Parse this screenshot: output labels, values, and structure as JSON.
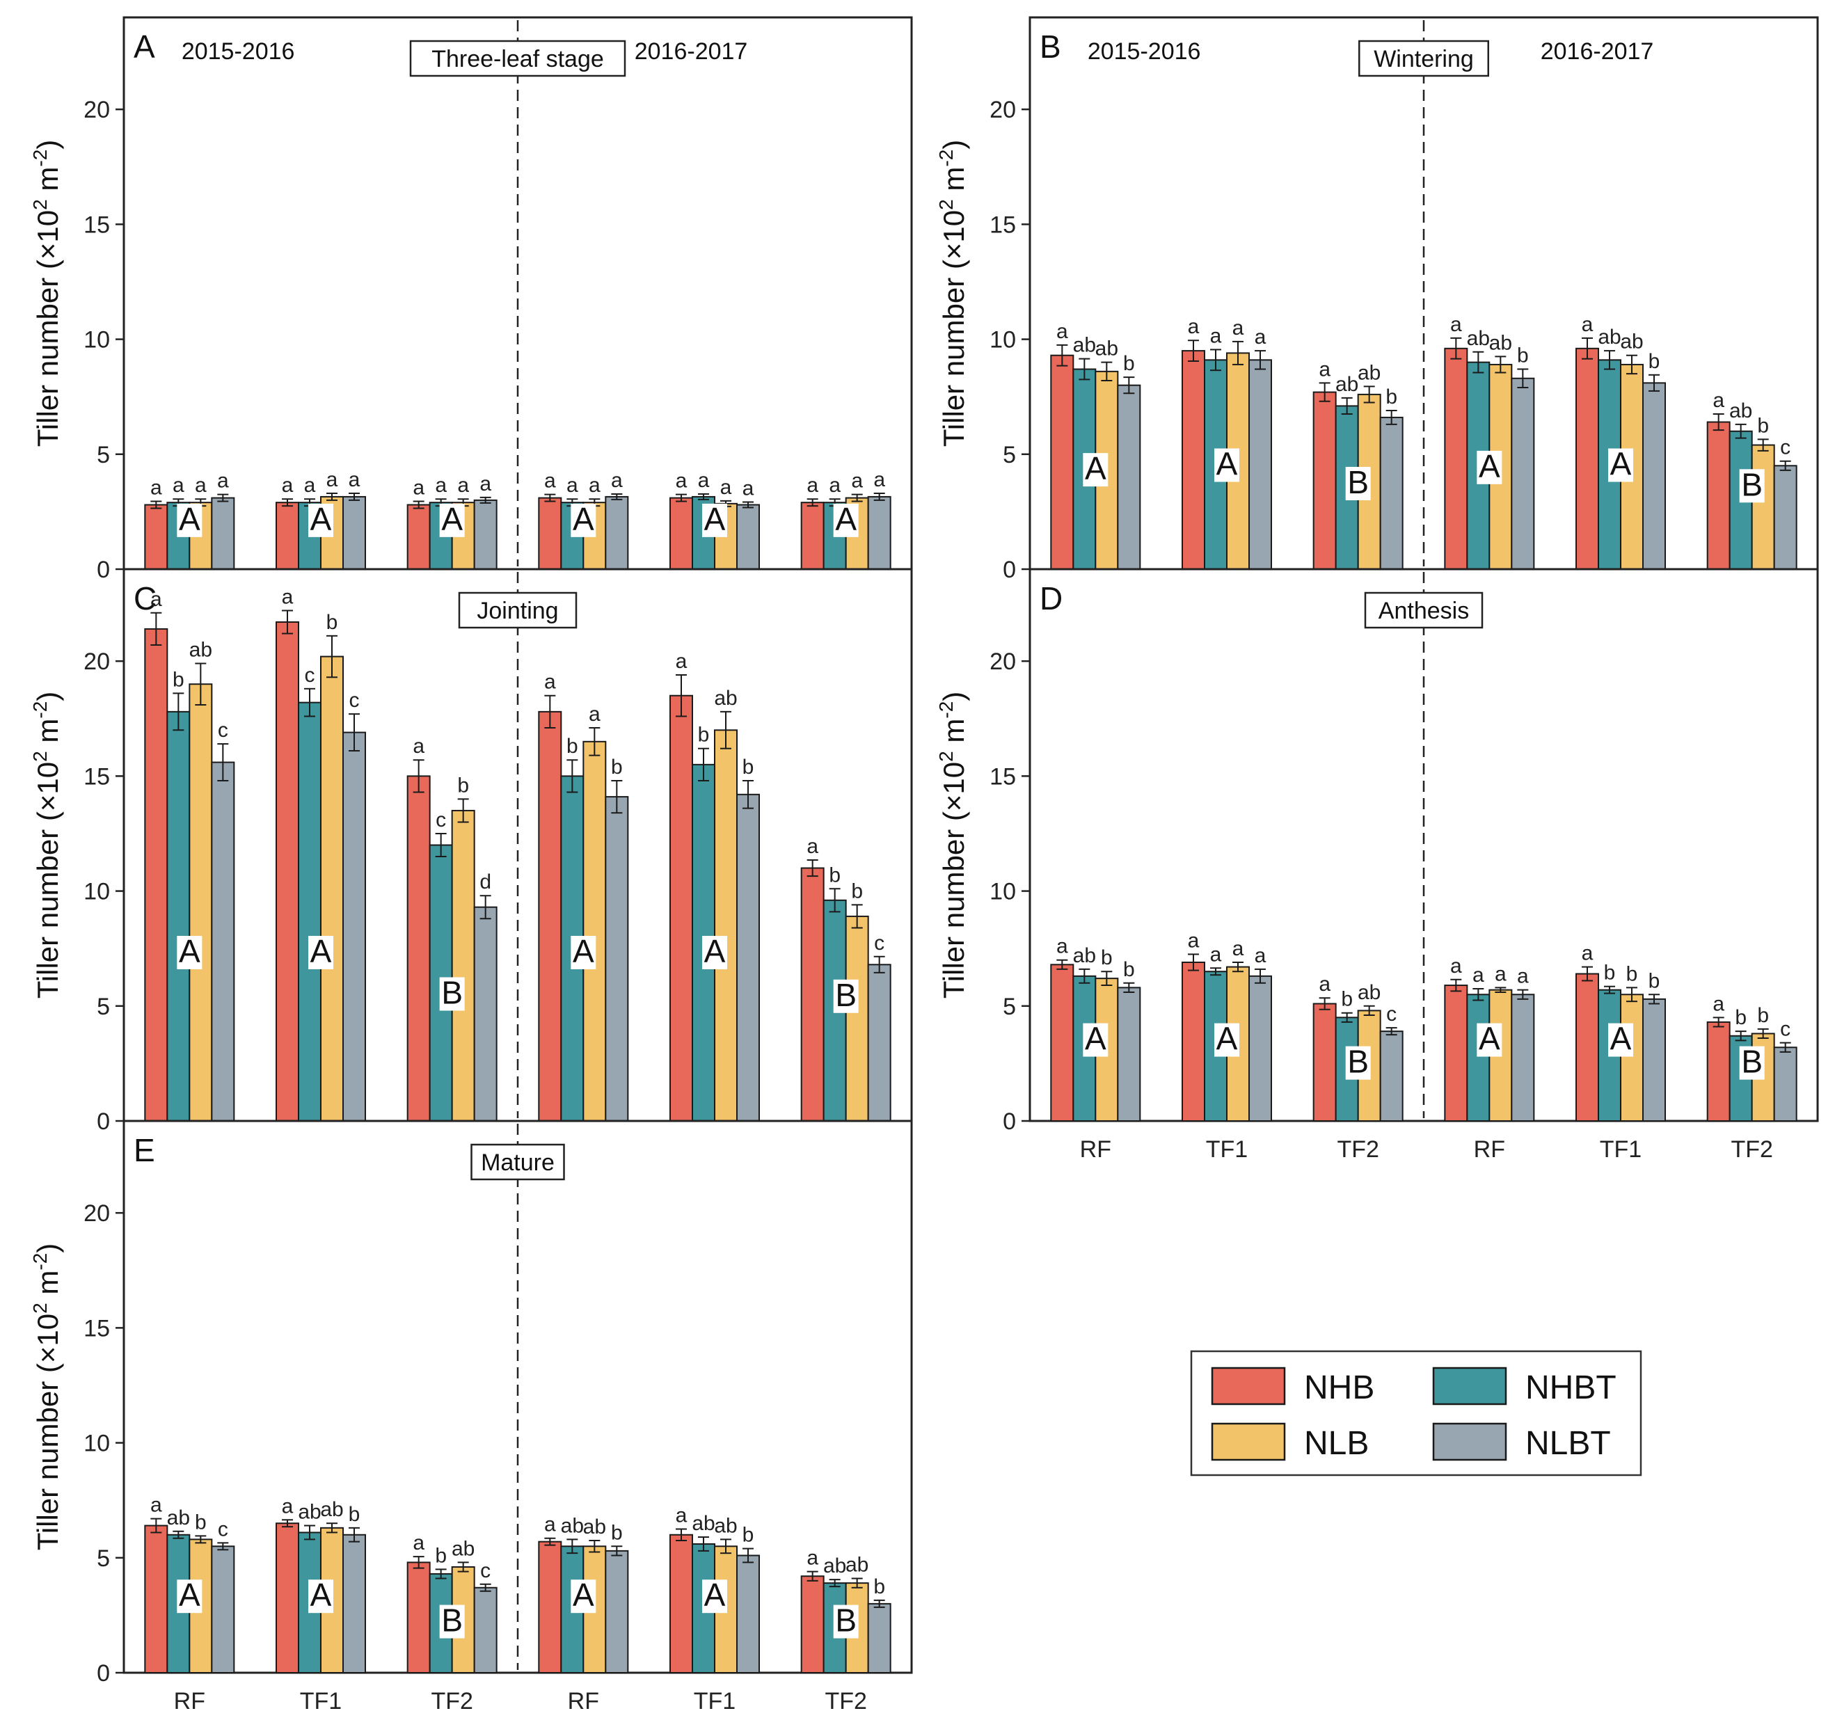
{
  "colors": {
    "NHB": "#e8695a",
    "NHBT": "#3f969d",
    "NLB": "#f3c36a",
    "NLBT": "#98a6b2"
  },
  "legend": [
    "NHB",
    "NHBT",
    "NLB",
    "NLBT"
  ],
  "chart_data": [
    {
      "type": "bar",
      "panel": "A",
      "stage": "Three-leaf stage",
      "years": [
        "2015-2016",
        "2016-2017"
      ],
      "ylabel": "Tiller number (×10",
      "ylabel_sup": "2",
      "ylabel_unit": " m",
      "ylabel_sup2": "-2",
      "ylabel_end": ")",
      "ylim": [
        0,
        24
      ],
      "yticks": [
        "0",
        "5",
        "10",
        "15",
        "20"
      ],
      "categories": [
        "RF",
        "TF1",
        "TF2",
        "RF",
        "TF1",
        "TF2"
      ],
      "series": [
        {
          "name": "NHB",
          "values": [
            2.8,
            2.9,
            2.8,
            3.1,
            3.1,
            2.9
          ],
          "err": [
            0.15,
            0.15,
            0.15,
            0.15,
            0.15,
            0.15
          ]
        },
        {
          "name": "NHBT",
          "values": [
            2.9,
            2.9,
            2.9,
            2.9,
            3.15,
            2.9
          ],
          "err": [
            0.15,
            0.15,
            0.15,
            0.15,
            0.12,
            0.15
          ]
        },
        {
          "name": "NLB",
          "values": [
            2.9,
            3.15,
            2.9,
            2.9,
            2.85,
            3.1
          ],
          "err": [
            0.15,
            0.15,
            0.15,
            0.15,
            0.12,
            0.15
          ]
        },
        {
          "name": "NLBT",
          "values": [
            3.1,
            3.15,
            3.0,
            3.15,
            2.8,
            3.15
          ],
          "err": [
            0.15,
            0.15,
            0.12,
            0.12,
            0.12,
            0.15
          ]
        }
      ],
      "sig": [
        [
          "a",
          "a",
          "a",
          "a"
        ],
        [
          "a",
          "a",
          "a",
          "a"
        ],
        [
          "a",
          "a",
          "a",
          "a"
        ],
        [
          "a",
          "a",
          "a",
          "a"
        ],
        [
          "a",
          "a",
          "a",
          "a"
        ],
        [
          "a",
          "a",
          "a",
          "a"
        ]
      ],
      "group_labels": [
        "A",
        "A",
        "A",
        "A",
        "A",
        "A"
      ],
      "group_label_values": [
        1.7,
        1.7,
        1.7,
        1.7,
        1.7,
        1.7
      ],
      "show_xticks": false
    },
    {
      "type": "bar",
      "panel": "B",
      "stage": "Wintering",
      "years": [
        "2015-2016",
        "2016-2017"
      ],
      "ylabel": "Tiller number (×10",
      "ylabel_sup": "2",
      "ylabel_unit": " m",
      "ylabel_sup2": "-2",
      "ylabel_end": ")",
      "ylim": [
        0,
        24
      ],
      "yticks": [
        "0",
        "5",
        "10",
        "15",
        "20"
      ],
      "categories": [
        "RF",
        "TF1",
        "TF2",
        "RF",
        "TF1",
        "TF2"
      ],
      "series": [
        {
          "name": "NHB",
          "values": [
            9.3,
            9.5,
            7.7,
            9.6,
            9.6,
            6.4
          ],
          "err": [
            0.45,
            0.45,
            0.4,
            0.45,
            0.45,
            0.35
          ]
        },
        {
          "name": "NHBT",
          "values": [
            8.7,
            9.1,
            7.1,
            9.0,
            9.1,
            6.0
          ],
          "err": [
            0.45,
            0.45,
            0.35,
            0.45,
            0.4,
            0.3
          ]
        },
        {
          "name": "NLB",
          "values": [
            8.6,
            9.4,
            7.6,
            8.9,
            8.9,
            5.4
          ],
          "err": [
            0.4,
            0.5,
            0.35,
            0.35,
            0.4,
            0.25
          ]
        },
        {
          "name": "NLBT",
          "values": [
            8.0,
            9.1,
            6.6,
            8.3,
            8.1,
            4.5
          ],
          "err": [
            0.35,
            0.4,
            0.3,
            0.4,
            0.35,
            0.2
          ]
        }
      ],
      "sig": [
        [
          "a",
          "ab",
          "ab",
          "b"
        ],
        [
          "a",
          "a",
          "a",
          "a"
        ],
        [
          "a",
          "ab",
          "ab",
          "b"
        ],
        [
          "a",
          "ab",
          "ab",
          "b"
        ],
        [
          "a",
          "ab",
          "ab",
          "b"
        ],
        [
          "a",
          "ab",
          "b",
          "c"
        ]
      ],
      "group_labels": [
        "A",
        "A",
        "B",
        "A",
        "A",
        "B"
      ],
      "group_label_values": [
        3.9,
        4.1,
        3.3,
        4.0,
        4.1,
        3.2
      ],
      "show_xticks": false
    },
    {
      "type": "bar",
      "panel": "C",
      "stage": "Jointing",
      "years": [],
      "ylabel": "Tiller number (×10",
      "ylabel_sup": "2",
      "ylabel_unit": " m",
      "ylabel_sup2": "-2",
      "ylabel_end": ")",
      "ylim": [
        0,
        24
      ],
      "yticks": [
        "0",
        "5",
        "10",
        "15",
        "20"
      ],
      "categories": [
        "RF",
        "TF1",
        "TF2",
        "RF",
        "TF1",
        "TF2"
      ],
      "series": [
        {
          "name": "NHB",
          "values": [
            21.4,
            21.7,
            15.0,
            17.8,
            18.5,
            11.0
          ],
          "err": [
            0.7,
            0.5,
            0.7,
            0.7,
            0.9,
            0.35
          ]
        },
        {
          "name": "NHBT",
          "values": [
            17.8,
            18.2,
            12.0,
            15.0,
            15.5,
            9.6
          ],
          "err": [
            0.8,
            0.6,
            0.5,
            0.7,
            0.7,
            0.5
          ]
        },
        {
          "name": "NLB",
          "values": [
            19.0,
            20.2,
            13.5,
            16.5,
            17.0,
            8.9
          ],
          "err": [
            0.9,
            0.9,
            0.5,
            0.6,
            0.8,
            0.5
          ]
        },
        {
          "name": "NLBT",
          "values": [
            15.6,
            16.9,
            9.3,
            14.1,
            14.2,
            6.8
          ],
          "err": [
            0.8,
            0.8,
            0.5,
            0.7,
            0.6,
            0.35
          ]
        }
      ],
      "sig": [
        [
          "a",
          "b",
          "ab",
          "c"
        ],
        [
          "a",
          "c",
          "b",
          "c"
        ],
        [
          "a",
          "c",
          "b",
          "d"
        ],
        [
          "a",
          "b",
          "a",
          "b"
        ],
        [
          "a",
          "b",
          "ab",
          "b"
        ],
        [
          "a",
          "b",
          "b",
          "c"
        ]
      ],
      "group_labels": [
        "A",
        "A",
        "B",
        "A",
        "A",
        "B"
      ],
      "group_label_values": [
        6.9,
        6.9,
        5.1,
        6.9,
        6.9,
        5.0
      ],
      "show_xticks": false
    },
    {
      "type": "bar",
      "panel": "D",
      "stage": "Anthesis",
      "years": [],
      "ylabel": "Tiller number (×10",
      "ylabel_sup": "2",
      "ylabel_unit": " m",
      "ylabel_sup2": "-2",
      "ylabel_end": ")",
      "ylim": [
        0,
        24
      ],
      "yticks": [
        "0",
        "5",
        "10",
        "15",
        "20"
      ],
      "categories": [
        "RF",
        "TF1",
        "TF2",
        "RF",
        "TF1",
        "TF2"
      ],
      "series": [
        {
          "name": "NHB",
          "values": [
            6.8,
            6.9,
            5.1,
            5.9,
            6.4,
            4.3
          ],
          "err": [
            0.2,
            0.35,
            0.25,
            0.25,
            0.3,
            0.2
          ]
        },
        {
          "name": "NHBT",
          "values": [
            6.3,
            6.5,
            4.5,
            5.5,
            5.7,
            3.7
          ],
          "err": [
            0.3,
            0.15,
            0.2,
            0.25,
            0.15,
            0.2
          ]
        },
        {
          "name": "NLB",
          "values": [
            6.2,
            6.7,
            4.8,
            5.7,
            5.5,
            3.8
          ],
          "err": [
            0.3,
            0.2,
            0.2,
            0.1,
            0.3,
            0.2
          ]
        },
        {
          "name": "NLBT",
          "values": [
            5.8,
            6.3,
            3.9,
            5.5,
            5.3,
            3.2
          ],
          "err": [
            0.2,
            0.3,
            0.15,
            0.2,
            0.2,
            0.2
          ]
        }
      ],
      "sig": [
        [
          "a",
          "ab",
          "b",
          "b"
        ],
        [
          "a",
          "a",
          "a",
          "a"
        ],
        [
          "a",
          "b",
          "ab",
          "c"
        ],
        [
          "a",
          "a",
          "a",
          "a"
        ],
        [
          "a",
          "b",
          "b",
          "b"
        ],
        [
          "a",
          "b",
          "b",
          "c"
        ]
      ],
      "group_labels": [
        "A",
        "A",
        "B",
        "A",
        "A",
        "B"
      ],
      "group_label_values": [
        3.1,
        3.1,
        2.1,
        3.1,
        3.1,
        2.1
      ],
      "show_xticks": true
    },
    {
      "type": "bar",
      "panel": "E",
      "stage": "Mature",
      "years": [],
      "ylabel": "Tiller number (×10",
      "ylabel_sup": "2",
      "ylabel_unit": " m",
      "ylabel_sup2": "-2",
      "ylabel_end": ")",
      "ylim": [
        0,
        24
      ],
      "yticks": [
        "0",
        "5",
        "10",
        "15",
        "20"
      ],
      "categories": [
        "RF",
        "TF1",
        "TF2",
        "RF",
        "TF1",
        "TF2"
      ],
      "series": [
        {
          "name": "NHB",
          "values": [
            6.4,
            6.5,
            4.8,
            5.7,
            6.0,
            4.2
          ],
          "err": [
            0.3,
            0.15,
            0.25,
            0.15,
            0.25,
            0.2
          ]
        },
        {
          "name": "NHBT",
          "values": [
            6.0,
            6.1,
            4.3,
            5.5,
            5.6,
            3.9
          ],
          "err": [
            0.15,
            0.3,
            0.2,
            0.3,
            0.3,
            0.15
          ]
        },
        {
          "name": "NLB",
          "values": [
            5.8,
            6.3,
            4.6,
            5.5,
            5.5,
            3.9
          ],
          "err": [
            0.15,
            0.2,
            0.2,
            0.25,
            0.3,
            0.2
          ]
        },
        {
          "name": "NLBT",
          "values": [
            5.5,
            6.0,
            3.7,
            5.3,
            5.1,
            3.0
          ],
          "err": [
            0.15,
            0.3,
            0.15,
            0.2,
            0.3,
            0.15
          ]
        }
      ],
      "sig": [
        [
          "a",
          "ab",
          "b",
          "c"
        ],
        [
          "a",
          "ab",
          "ab",
          "b"
        ],
        [
          "a",
          "b",
          "ab",
          "c"
        ],
        [
          "a",
          "ab",
          "ab",
          "b"
        ],
        [
          "a",
          "ab",
          "ab",
          "b"
        ],
        [
          "a",
          "ab",
          "ab",
          "b"
        ]
      ],
      "group_labels": [
        "A",
        "A",
        "B",
        "A",
        "A",
        "B"
      ],
      "group_label_values": [
        2.9,
        2.9,
        1.8,
        2.9,
        2.9,
        1.8
      ],
      "show_xticks": true
    }
  ]
}
